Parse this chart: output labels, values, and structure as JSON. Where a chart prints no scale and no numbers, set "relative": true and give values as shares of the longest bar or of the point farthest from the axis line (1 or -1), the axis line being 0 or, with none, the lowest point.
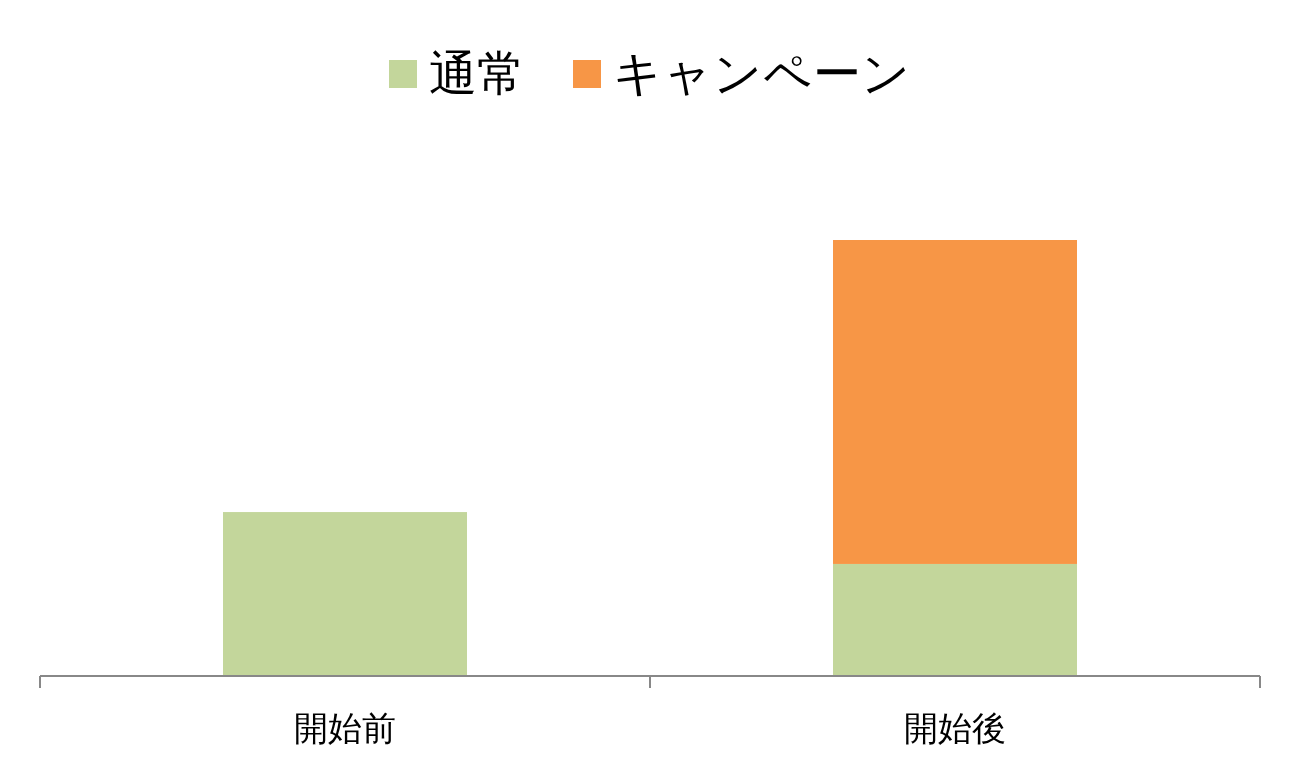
{
  "chart_data": {
    "type": "bar",
    "stacked": true,
    "relative": true,
    "legend": "top",
    "categories": [
      "開始前",
      "開始後"
    ],
    "series": [
      {
        "name": "通常",
        "color": "#c3d69b",
        "values": [
          0.376,
          0.257
        ]
      },
      {
        "name": "キャンペーン",
        "color": "#f79646",
        "values": [
          null,
          0.743
        ]
      }
    ]
  }
}
